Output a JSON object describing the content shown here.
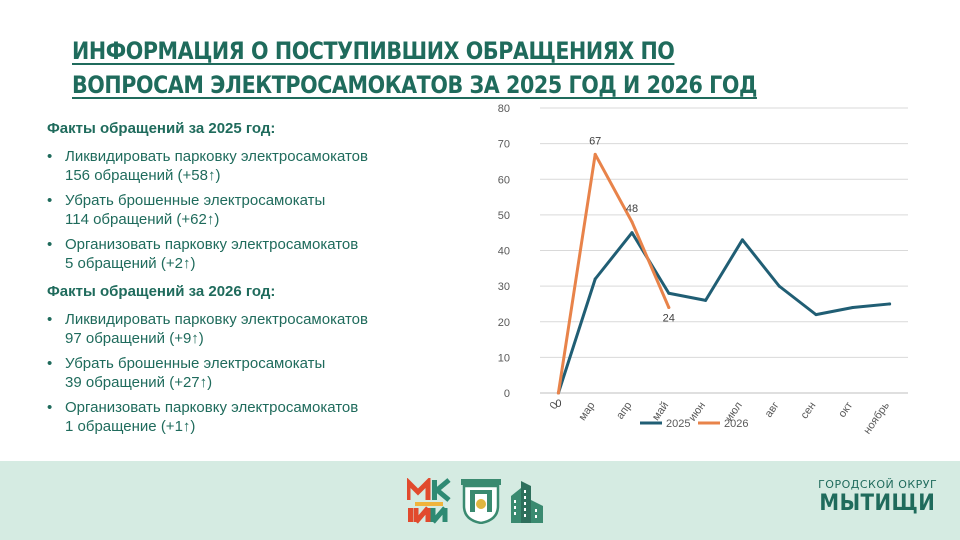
{
  "slide": {
    "title": "ИНФОРМАЦИЯ О ПОСТУПИВШИХ ОБРАЩЕНИЯХ ПО ВОПРОСАМ ЭЛЕКТРОСАМОКАТОВ ЗА 2025 ГОД И 2026 ГОД"
  },
  "facts": [
    {
      "heading": "Факты обращений за 2025 год:",
      "items": [
        {
          "line1": "Ликвидировать парковку электросамокатов",
          "line2": "156 обращений (+58↑)"
        },
        {
          "line1": "Убрать брошенные электросамокаты",
          "line2": "114 обращений (+62↑)"
        },
        {
          "line1": "Организовать парковку электросамокатов",
          "line2": "5 обращений (+2↑)"
        }
      ]
    },
    {
      "heading": "Факты обращений за 2026 год:",
      "items": [
        {
          "line1": "Ликвидировать парковку электросамокатов",
          "line2": "97 обращений (+9↑)"
        },
        {
          "line1": "Убрать брошенные электросамокаты",
          "line2": "39 обращений (+27↑)"
        },
        {
          "line1": "Организовать парковку электросамокатов",
          "line2": "1 обращение (+1↑)"
        }
      ]
    }
  ],
  "chart_data": {
    "type": "line",
    "categories": [
      "0",
      "мар",
      "апр",
      "май",
      "июн",
      "июл",
      "авг",
      "сен",
      "окт",
      "ноябрь"
    ],
    "ylim": [
      0,
      80
    ],
    "yticks": [
      0,
      10,
      20,
      30,
      40,
      50,
      60,
      70,
      80
    ],
    "grid": true,
    "legend_position": "bottom",
    "series": [
      {
        "name": "2025",
        "color": "#205e74",
        "values": [
          0,
          32,
          45,
          28,
          26,
          43,
          30,
          22,
          24,
          25
        ]
      },
      {
        "name": "2026",
        "color": "#e8834a",
        "values": [
          0,
          67,
          48,
          24,
          null,
          null,
          null,
          null,
          null,
          null
        ],
        "data_labels": [
          {
            "index": 0,
            "text": "0"
          },
          {
            "index": 1,
            "text": "67"
          },
          {
            "index": 2,
            "text": "48"
          },
          {
            "index": 3,
            "text": "24"
          }
        ]
      }
    ]
  },
  "footer": {
    "brand_small": "ГОРОДСКОЙ ОКРУГ",
    "brand_big": "МЫТИЩИ",
    "bg_color": "#d5ebe2"
  },
  "logos": [
    "mki-logo",
    "city-crest-logo",
    "building-logo"
  ]
}
